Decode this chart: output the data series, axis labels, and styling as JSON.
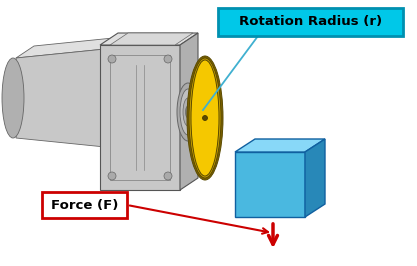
{
  "bg_color": "#ffffff",
  "motor_body_color": "#c8c8c8",
  "motor_body_dark": "#909090",
  "motor_body_light": "#e0e0e0",
  "motor_side_color": "#b0b0b0",
  "pulley_yellow": "#f5c800",
  "pulley_dark": "#c8a000",
  "pulley_rim": "#7a6000",
  "box_front_color": "#4ab8e0",
  "box_top_color": "#88d8f8",
  "box_side_color": "#2888b8",
  "label_rotation_bg": "#00c8e8",
  "label_force_bg": "#ffffff",
  "label_force_border": "#cc0000",
  "arrow_color": "#cc0000",
  "rope_color": "#303030",
  "cyan_line": "#40b0d0",
  "text_color": "#000000",
  "rotation_label": "Rotation Radius (r)",
  "force_label": "Force (F)",
  "rotation_fontsize": 9.5,
  "force_fontsize": 9.5,
  "figsize": [
    4.17,
    2.66
  ],
  "dpi": 100
}
